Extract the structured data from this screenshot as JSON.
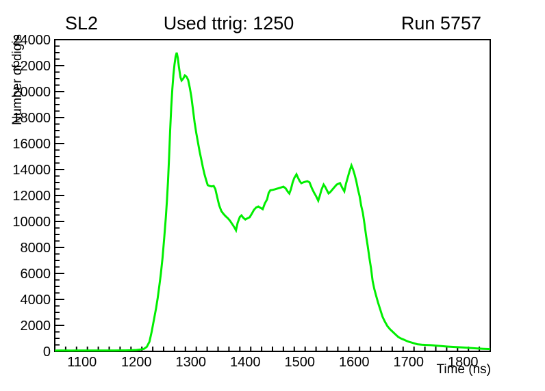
{
  "header": {
    "left_title": "SL2",
    "center_title": "Used ttrig: 1250",
    "right_title": "Run 5757"
  },
  "chart_data": {
    "type": "line",
    "title": "Used ttrig: 1250",
    "left_label": "SL2",
    "right_label": "Run 5757",
    "xlabel": "Time (ns)",
    "ylabel": "Number of digis",
    "xlim": [
      1050,
      1850
    ],
    "ylim": [
      0,
      24000
    ],
    "x_major_tick_step": 100,
    "x_minor_tick_step": 20,
    "y_major_tick_step": 2000,
    "y_minor_tick_step": 500,
    "x_tick_labels": [
      "1100",
      "1200",
      "1300",
      "1400",
      "1500",
      "1600",
      "1700",
      "1800"
    ],
    "y_tick_labels": [
      "0",
      "2000",
      "4000",
      "6000",
      "8000",
      "10000",
      "12000",
      "14000",
      "16000",
      "18000",
      "20000",
      "22000",
      "24000"
    ],
    "grid": false,
    "legend_position": "none",
    "line_color": "#00ee00",
    "axis_color": "#000000",
    "background_color": "#ffffff",
    "points": [
      [
        1050,
        60
      ],
      [
        1060,
        62
      ],
      [
        1070,
        65
      ],
      [
        1080,
        60
      ],
      [
        1090,
        64
      ],
      [
        1100,
        66
      ],
      [
        1110,
        70
      ],
      [
        1120,
        62
      ],
      [
        1130,
        66
      ],
      [
        1140,
        62
      ],
      [
        1150,
        66
      ],
      [
        1160,
        70
      ],
      [
        1170,
        72
      ],
      [
        1180,
        76
      ],
      [
        1190,
        86
      ],
      [
        1200,
        105
      ],
      [
        1208,
        140
      ],
      [
        1214,
        200
      ],
      [
        1219,
        350
      ],
      [
        1224,
        750
      ],
      [
        1228,
        1500
      ],
      [
        1232,
        2400
      ],
      [
        1236,
        3300
      ],
      [
        1239,
        4100
      ],
      [
        1242,
        5000
      ],
      [
        1245,
        6000
      ],
      [
        1248,
        7200
      ],
      [
        1251,
        8700
      ],
      [
        1254,
        10300
      ],
      [
        1256,
        11600
      ],
      [
        1258,
        13100
      ],
      [
        1260,
        15000
      ],
      [
        1262,
        17000
      ],
      [
        1264,
        18800
      ],
      [
        1266,
        20200
      ],
      [
        1268,
        21300
      ],
      [
        1270,
        22100
      ],
      [
        1272,
        22700
      ],
      [
        1274,
        23000
      ],
      [
        1276,
        22600
      ],
      [
        1278,
        21900
      ],
      [
        1281,
        21100
      ],
      [
        1283,
        20850
      ],
      [
        1286,
        21000
      ],
      [
        1289,
        21250
      ],
      [
        1292,
        21150
      ],
      [
        1295,
        20900
      ],
      [
        1298,
        20300
      ],
      [
        1301,
        19600
      ],
      [
        1304,
        18600
      ],
      [
        1307,
        17600
      ],
      [
        1310,
        16800
      ],
      [
        1313,
        16100
      ],
      [
        1316,
        15400
      ],
      [
        1319,
        14800
      ],
      [
        1322,
        14200
      ],
      [
        1325,
        13650
      ],
      [
        1328,
        13200
      ],
      [
        1331,
        12800
      ],
      [
        1334,
        12740
      ],
      [
        1338,
        12700
      ],
      [
        1342,
        12730
      ],
      [
        1345,
        12500
      ],
      [
        1348,
        11950
      ],
      [
        1352,
        11250
      ],
      [
        1356,
        10800
      ],
      [
        1360,
        10580
      ],
      [
        1364,
        10400
      ],
      [
        1368,
        10250
      ],
      [
        1372,
        10050
      ],
      [
        1376,
        9800
      ],
      [
        1380,
        9550
      ],
      [
        1383,
        9320
      ],
      [
        1386,
        9900
      ],
      [
        1390,
        10350
      ],
      [
        1393,
        10470
      ],
      [
        1396,
        10300
      ],
      [
        1400,
        10150
      ],
      [
        1404,
        10250
      ],
      [
        1408,
        10320
      ],
      [
        1412,
        10600
      ],
      [
        1416,
        10900
      ],
      [
        1420,
        11080
      ],
      [
        1424,
        11150
      ],
      [
        1428,
        11050
      ],
      [
        1432,
        10950
      ],
      [
        1436,
        11400
      ],
      [
        1440,
        11700
      ],
      [
        1443,
        12200
      ],
      [
        1446,
        12400
      ],
      [
        1450,
        12430
      ],
      [
        1454,
        12470
      ],
      [
        1458,
        12520
      ],
      [
        1462,
        12570
      ],
      [
        1466,
        12620
      ],
      [
        1470,
        12680
      ],
      [
        1474,
        12560
      ],
      [
        1478,
        12300
      ],
      [
        1481,
        12150
      ],
      [
        1484,
        12500
      ],
      [
        1487,
        13000
      ],
      [
        1490,
        13350
      ],
      [
        1494,
        13630
      ],
      [
        1497,
        13350
      ],
      [
        1500,
        13100
      ],
      [
        1503,
        12950
      ],
      [
        1506,
        13000
      ],
      [
        1510,
        13060
      ],
      [
        1514,
        13100
      ],
      [
        1518,
        13010
      ],
      [
        1522,
        12600
      ],
      [
        1526,
        12250
      ],
      [
        1530,
        11950
      ],
      [
        1534,
        11600
      ],
      [
        1537,
        12000
      ],
      [
        1540,
        12450
      ],
      [
        1544,
        12840
      ],
      [
        1547,
        12650
      ],
      [
        1550,
        12400
      ],
      [
        1553,
        12160
      ],
      [
        1556,
        12260
      ],
      [
        1560,
        12450
      ],
      [
        1564,
        12650
      ],
      [
        1568,
        12840
      ],
      [
        1571,
        12900
      ],
      [
        1574,
        12960
      ],
      [
        1578,
        12600
      ],
      [
        1582,
        12320
      ],
      [
        1585,
        12900
      ],
      [
        1588,
        13350
      ],
      [
        1591,
        13800
      ],
      [
        1595,
        14320
      ],
      [
        1598,
        14000
      ],
      [
        1601,
        13600
      ],
      [
        1604,
        13100
      ],
      [
        1607,
        12470
      ],
      [
        1610,
        11950
      ],
      [
        1613,
        11200
      ],
      [
        1616,
        10650
      ],
      [
        1619,
        9800
      ],
      [
        1622,
        8900
      ],
      [
        1625,
        8100
      ],
      [
        1628,
        7200
      ],
      [
        1631,
        6400
      ],
      [
        1634,
        5400
      ],
      [
        1637,
        4800
      ],
      [
        1640,
        4350
      ],
      [
        1644,
        3750
      ],
      [
        1648,
        3220
      ],
      [
        1652,
        2680
      ],
      [
        1656,
        2320
      ],
      [
        1661,
        1950
      ],
      [
        1666,
        1700
      ],
      [
        1671,
        1500
      ],
      [
        1676,
        1300
      ],
      [
        1681,
        1110
      ],
      [
        1686,
        990
      ],
      [
        1691,
        905
      ],
      [
        1696,
        810
      ],
      [
        1701,
        730
      ],
      [
        1708,
        645
      ],
      [
        1716,
        545
      ],
      [
        1724,
        510
      ],
      [
        1732,
        495
      ],
      [
        1740,
        478
      ],
      [
        1750,
        440
      ],
      [
        1760,
        405
      ],
      [
        1771,
        370
      ],
      [
        1782,
        340
      ],
      [
        1793,
        315
      ],
      [
        1804,
        290
      ],
      [
        1815,
        260
      ],
      [
        1826,
        225
      ],
      [
        1837,
        200
      ],
      [
        1847,
        185
      ],
      [
        1850,
        180
      ]
    ]
  }
}
